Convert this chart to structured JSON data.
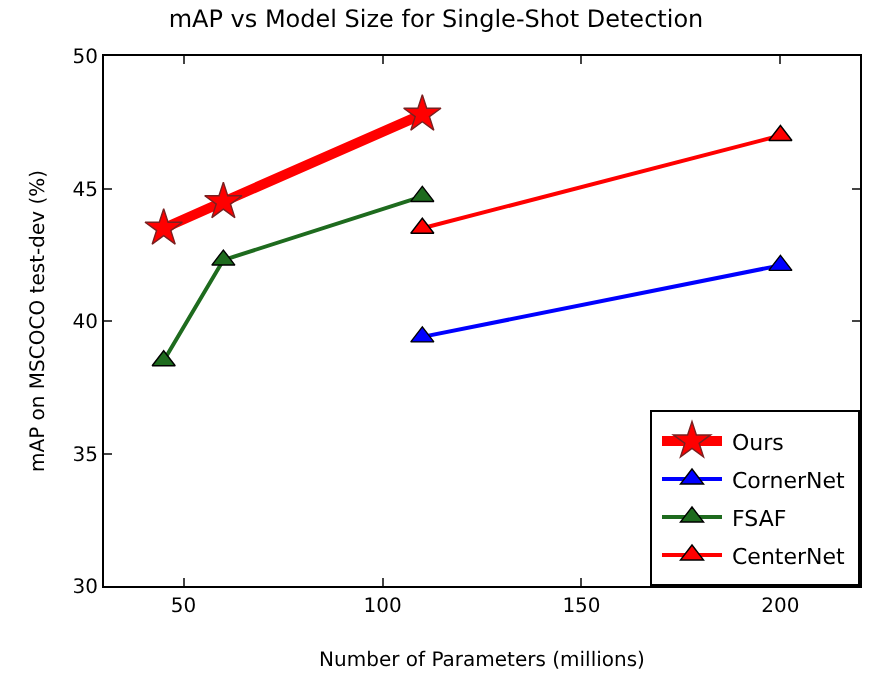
{
  "chart_data": {
    "type": "line",
    "title": "mAP vs Model Size for Single-Shot Detection",
    "xlabel": "Number of Parameters (millions)",
    "ylabel": "mAP on MSCOCO test-dev (%)",
    "xlim": [
      30,
      220
    ],
    "xticks": [
      50,
      100,
      150,
      200
    ],
    "ylim": [
      30,
      50
    ],
    "yticks": [
      30,
      35,
      40,
      45,
      50
    ],
    "grid": false,
    "legend": "bottom right",
    "line_style": "solid",
    "series": [
      {
        "name": "Ours",
        "color": "#ff0000",
        "marker": "star",
        "x": [
          45,
          60,
          110
        ],
        "values": [
          43.5,
          44.5,
          47.8
        ]
      },
      {
        "name": "CornerNet",
        "color": "#0000ff",
        "marker": "triangle",
        "x": [
          110,
          200
        ],
        "values": [
          39.4,
          42.1
        ]
      },
      {
        "name": "FSAF",
        "color": "#1e6b1e",
        "marker": "triangle",
        "x": [
          45,
          60,
          110
        ],
        "values": [
          38.5,
          42.3,
          44.7
        ]
      },
      {
        "name": "CenterNet",
        "color": "#ff0000",
        "marker": "triangle",
        "x": [
          110,
          200
        ],
        "values": [
          43.5,
          47
        ]
      }
    ]
  }
}
